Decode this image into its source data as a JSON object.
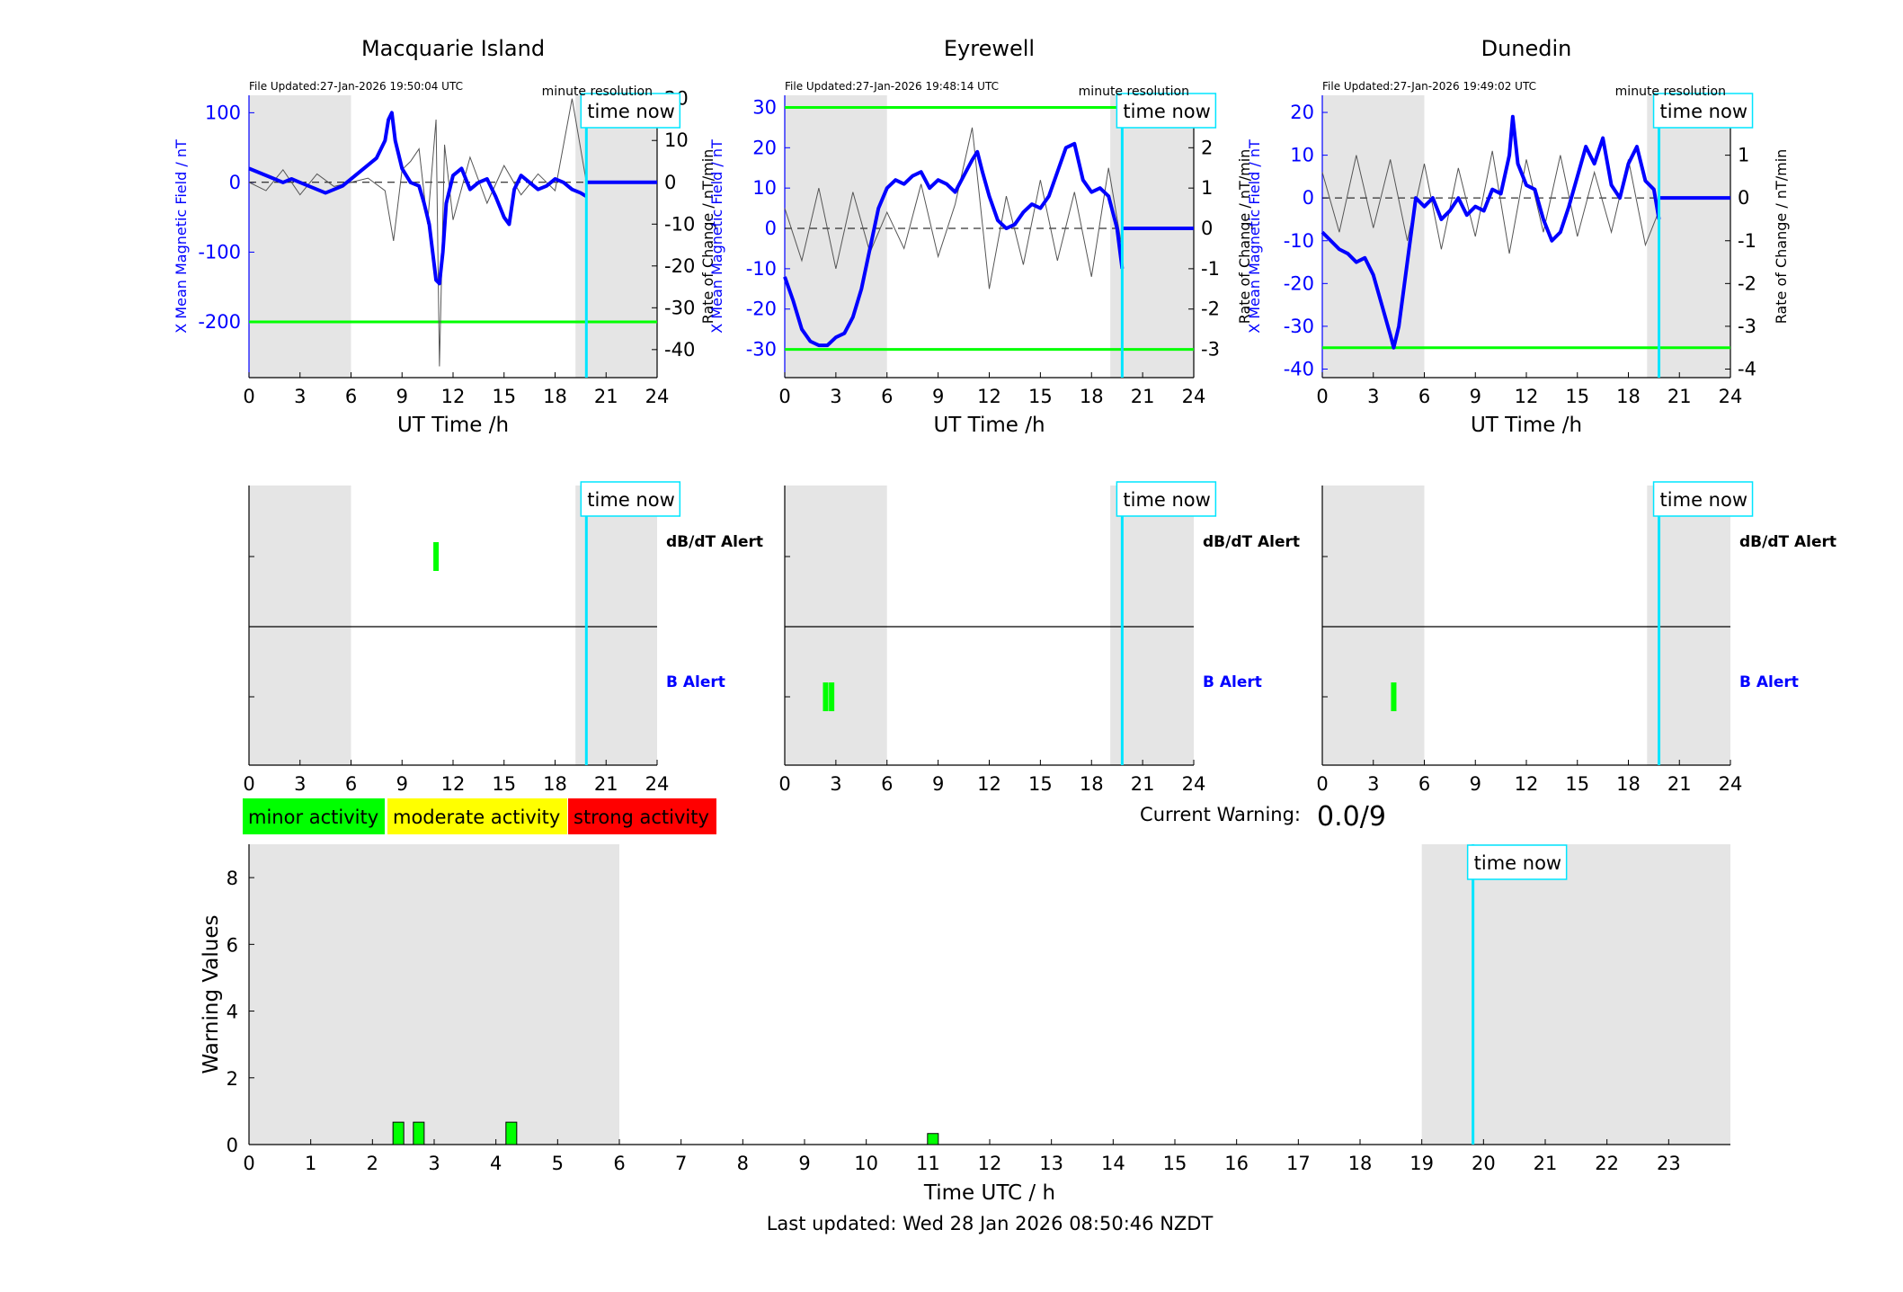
{
  "chart_data": [
    {
      "type": "line",
      "title": "Macquarie Island",
      "file_updated": "File Updated:27-Jan-2026 19:50:04 UTC",
      "resolution_label": "minute resolution",
      "time_now_label": "time now",
      "xlabel": "UT Time /h",
      "ylabel_left": "X Mean Magnetic Field / nT",
      "ylabel_right": "Rate of Change / nT/min",
      "xlim": [
        0,
        24
      ],
      "xticks": [
        "0",
        "3",
        "6",
        "9",
        "12",
        "15",
        "18",
        "21",
        "24"
      ],
      "ylim_left": [
        -280,
        125
      ],
      "yticks_left": [
        "100",
        "0",
        "-100",
        "-200"
      ],
      "ylim_right": [
        -46.7,
        20.8
      ],
      "yticks_right": [
        "20",
        "10",
        "0",
        "-10",
        "-20",
        "-30",
        "-40"
      ],
      "threshold_left": -200,
      "night_shading": [
        [
          0,
          6
        ],
        [
          19.2,
          24
        ]
      ],
      "time_now": 19.84,
      "field_series": {
        "name": "X Mean Magnetic Field",
        "x": [
          0,
          0.5,
          1,
          1.5,
          2,
          2.5,
          3,
          3.5,
          4,
          4.5,
          5,
          5.5,
          6,
          6.5,
          7,
          7.5,
          8,
          8.2,
          8.4,
          8.6,
          9,
          9.5,
          10,
          10.3,
          10.6,
          10.8,
          11,
          11.2,
          11.4,
          11.6,
          12,
          12.5,
          13,
          13.5,
          14,
          14.5,
          15,
          15.3,
          15.6,
          16,
          16.5,
          17,
          17.5,
          18,
          18.5,
          19,
          19.5,
          19.84
        ],
        "y": [
          20,
          15,
          10,
          5,
          0,
          5,
          0,
          -5,
          -10,
          -15,
          -10,
          -5,
          5,
          15,
          25,
          35,
          60,
          90,
          100,
          60,
          20,
          0,
          -5,
          -30,
          -60,
          -100,
          -140,
          -145,
          -100,
          -30,
          10,
          20,
          -10,
          0,
          5,
          -20,
          -50,
          -60,
          -10,
          10,
          0,
          -10,
          -5,
          5,
          0,
          -10,
          -15,
          -20
        ]
      },
      "rate_series": {
        "name": "Rate of Change",
        "x": [
          0,
          1,
          2,
          3,
          4,
          5,
          6,
          7,
          8,
          8.5,
          9,
          9.5,
          10,
          10.5,
          11,
          11.2,
          11.5,
          12,
          13,
          14,
          15,
          16,
          17,
          18,
          19,
          19.84
        ],
        "y": [
          0,
          -2,
          3,
          -3,
          2,
          -1,
          0,
          1,
          -2,
          -14,
          3,
          5,
          8,
          -10,
          15,
          -44,
          9,
          -9,
          6,
          -5,
          4,
          -3,
          2,
          -2,
          20,
          0
        ]
      }
    },
    {
      "type": "line",
      "title": "Eyrewell",
      "file_updated": "File Updated:27-Jan-2026 19:48:14 UTC",
      "resolution_label": "minute resolution",
      "time_now_label": "time now",
      "xlabel": "UT Time /h",
      "ylabel_left": "X Mean Magnetic Field / nT",
      "ylabel_right": "Rate of Change / nT/min",
      "xlim": [
        0,
        24
      ],
      "xticks": [
        "0",
        "3",
        "6",
        "9",
        "12",
        "15",
        "18",
        "21",
        "24"
      ],
      "ylim_left": [
        -37,
        33
      ],
      "yticks_left": [
        "30",
        "20",
        "10",
        "0",
        "-10",
        "-20",
        "-30"
      ],
      "ylim_right": [
        -3.7,
        3.3
      ],
      "yticks_right": [
        "3",
        "2",
        "1",
        "0",
        "-1",
        "-2",
        "-3"
      ],
      "threshold_left": [
        30,
        -30
      ],
      "night_shading": [
        [
          0,
          6
        ],
        [
          19.1,
          24
        ]
      ],
      "time_now": 19.8,
      "field_series": {
        "name": "X Mean Magnetic Field",
        "x": [
          0,
          0.5,
          1,
          1.5,
          2,
          2.5,
          3,
          3.5,
          4,
          4.5,
          5,
          5.5,
          6,
          6.5,
          7,
          7.5,
          8,
          8.5,
          9,
          9.5,
          10,
          10.5,
          11,
          11.3,
          11.6,
          12,
          12.5,
          13,
          13.5,
          14,
          14.5,
          15,
          15.5,
          16,
          16.5,
          17,
          17.5,
          18,
          18.5,
          19,
          19.5,
          19.8
        ],
        "y": [
          -12,
          -18,
          -25,
          -28,
          -29,
          -29,
          -27,
          -26,
          -22,
          -15,
          -5,
          5,
          10,
          12,
          11,
          13,
          14,
          10,
          12,
          11,
          9,
          13,
          17,
          19,
          14,
          8,
          2,
          0,
          1,
          4,
          6,
          5,
          8,
          14,
          20,
          21,
          12,
          9,
          10,
          8,
          0,
          -10
        ]
      },
      "rate_series": {
        "name": "Rate of Change",
        "x": [
          0,
          1,
          2,
          3,
          4,
          5,
          6,
          7,
          8,
          9,
          10,
          11,
          12,
          13,
          14,
          15,
          16,
          17,
          18,
          19,
          19.8
        ],
        "y": [
          0.5,
          -0.8,
          1,
          -1,
          0.9,
          -0.6,
          0.4,
          -0.5,
          1.1,
          -0.7,
          0.6,
          2.5,
          -1.5,
          0.8,
          -0.9,
          1.2,
          -0.8,
          0.9,
          -1.2,
          1.5,
          -0.5
        ]
      }
    },
    {
      "type": "line",
      "title": "Dunedin",
      "file_updated": "File Updated:27-Jan-2026 19:49:02 UTC",
      "resolution_label": "minute resolution",
      "time_now_label": "time now",
      "xlabel": "UT Time /h",
      "ylabel_left": "X Mean Magnetic Field / nT",
      "ylabel_right": "Rate of Change / nT/min",
      "xlim": [
        0,
        24
      ],
      "xticks": [
        "0",
        "3",
        "6",
        "9",
        "12",
        "15",
        "18",
        "21",
        "24"
      ],
      "ylim_left": [
        -42,
        24
      ],
      "yticks_left": [
        "20",
        "10",
        "0",
        "-10",
        "-20",
        "-30",
        "-40"
      ],
      "ylim_right": [
        -4.2,
        2.4
      ],
      "yticks_right": [
        "2",
        "1",
        "0",
        "-1",
        "-2",
        "-3",
        "-4"
      ],
      "threshold_left": -35,
      "night_shading": [
        [
          0,
          6
        ],
        [
          19.1,
          24
        ]
      ],
      "time_now": 19.8,
      "field_series": {
        "name": "X Mean Magnetic Field",
        "x": [
          0,
          0.5,
          1,
          1.5,
          2,
          2.5,
          3,
          3.5,
          4,
          4.2,
          4.5,
          5,
          5.5,
          6,
          6.5,
          7,
          7.5,
          8,
          8.5,
          9,
          9.5,
          10,
          10.5,
          11,
          11.2,
          11.5,
          12,
          12.5,
          13,
          13.5,
          14,
          14.5,
          15,
          15.5,
          16,
          16.5,
          17,
          17.5,
          18,
          18.5,
          19,
          19.5,
          19.8
        ],
        "y": [
          -8,
          -10,
          -12,
          -13,
          -15,
          -14,
          -18,
          -25,
          -32,
          -35,
          -30,
          -15,
          0,
          -2,
          0,
          -5,
          -3,
          0,
          -4,
          -2,
          -3,
          2,
          1,
          10,
          19,
          8,
          3,
          2,
          -5,
          -10,
          -8,
          -2,
          5,
          12,
          8,
          14,
          3,
          0,
          8,
          12,
          4,
          2,
          -5
        ]
      },
      "rate_series": {
        "name": "Rate of Change",
        "x": [
          0,
          1,
          2,
          3,
          4,
          5,
          6,
          7,
          8,
          9,
          10,
          11,
          12,
          13,
          14,
          15,
          16,
          17,
          18,
          19,
          19.8
        ],
        "y": [
          0.6,
          -0.8,
          1.0,
          -0.7,
          0.9,
          -1.0,
          0.8,
          -1.2,
          0.7,
          -0.9,
          1.1,
          -1.3,
          0.9,
          -0.8,
          1.0,
          -0.9,
          0.6,
          -0.8,
          0.9,
          -1.1,
          -0.3
        ]
      }
    },
    {
      "type": "bar",
      "station": "Macquarie Island",
      "labels": [
        "dB/dT Alert",
        "B Alert"
      ],
      "time_now_label": "time now",
      "xlim": [
        0,
        24
      ],
      "xticks": [
        "0",
        "3",
        "6",
        "9",
        "12",
        "15",
        "18",
        "21",
        "24"
      ],
      "night_shading": [
        [
          0,
          6
        ],
        [
          19.2,
          24
        ]
      ],
      "time_now": 19.84,
      "dbdt_alerts": [
        11.0
      ],
      "b_alerts": []
    },
    {
      "type": "bar",
      "station": "Eyrewell",
      "labels": [
        "dB/dT Alert",
        "B Alert"
      ],
      "time_now_label": "time now",
      "xlim": [
        0,
        24
      ],
      "xticks": [
        "0",
        "3",
        "6",
        "9",
        "12",
        "15",
        "18",
        "21",
        "24"
      ],
      "night_shading": [
        [
          0,
          6
        ],
        [
          19.1,
          24
        ]
      ],
      "time_now": 19.8,
      "dbdt_alerts": [],
      "b_alerts": [
        2.4,
        2.75
      ]
    },
    {
      "type": "bar",
      "station": "Dunedin",
      "labels": [
        "dB/dT Alert",
        "B Alert"
      ],
      "time_now_label": "time now",
      "xlim": [
        0,
        24
      ],
      "xticks": [
        "0",
        "3",
        "6",
        "9",
        "12",
        "15",
        "18",
        "21",
        "24"
      ],
      "night_shading": [
        [
          0,
          6
        ],
        [
          19.1,
          24
        ]
      ],
      "time_now": 19.8,
      "dbdt_alerts": [],
      "b_alerts": [
        4.2
      ]
    },
    {
      "type": "bar",
      "xlabel": "Time UTC / h",
      "ylabel": "Warning Values",
      "xlim": [
        0,
        24
      ],
      "ylim": [
        0,
        9
      ],
      "xticks": [
        "0",
        "1",
        "2",
        "3",
        "4",
        "5",
        "6",
        "7",
        "8",
        "9",
        "10",
        "11",
        "12",
        "13",
        "14",
        "15",
        "16",
        "17",
        "18",
        "19",
        "20",
        "21",
        "22",
        "23"
      ],
      "yticks": [
        "0",
        "2",
        "4",
        "6",
        "8"
      ],
      "night_shading": [
        [
          0,
          6
        ],
        [
          19,
          24
        ]
      ],
      "time_now": 19.83,
      "time_now_label": "time now",
      "bars": [
        {
          "x": 2.42,
          "value": 0.67
        },
        {
          "x": 2.75,
          "value": 0.67
        },
        {
          "x": 4.25,
          "value": 0.67
        },
        {
          "x": 11.08,
          "value": 0.33
        }
      ],
      "bar_color": "#00ff00"
    }
  ],
  "legend": [
    {
      "label": "minor activity",
      "color": "#00ff00"
    },
    {
      "label": "moderate activity",
      "color": "#ffff00"
    },
    {
      "label": "strong activity",
      "color": "#ff0000"
    }
  ],
  "current_warning": {
    "label": "Current Warning:",
    "value": "0.0/9"
  },
  "last_updated": "Last updated: Wed 28 Jan 2026 08:50:46 NZDT",
  "colors": {
    "field": "#0000ff",
    "rate": "#555555",
    "threshold": "#00ff00",
    "time_now": "#00e5ff",
    "night": "#e5e5e5",
    "alert": "#00ff00"
  }
}
